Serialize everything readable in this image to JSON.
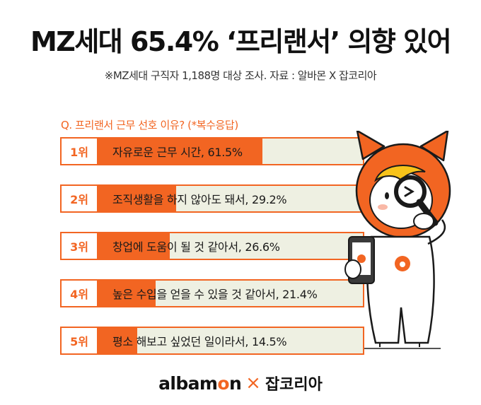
{
  "header": {
    "title": "MZ세대 65.4% ‘프리랜서’ 의향 있어",
    "subtitle": "※MZ세대 구직자 1,188명 대상 조사. 자료 : 알바몬 X 잡코리아"
  },
  "question": "Q. 프리랜서 근무 선호 이유? (*복수응답)",
  "chart_data": {
    "type": "bar",
    "orientation": "horizontal",
    "title": "Q. 프리랜서 근무 선호 이유? (*복수응답)",
    "categories": [
      "자유로운 근무 시간",
      "조직생활을 하지 않아도 돼서",
      "창업에 도움이 될 것 같아서",
      "높은 수입을 얻을 수 있을 것 같아서",
      "평소 해보고 싶었던 일이라서"
    ],
    "values": [
      61.5,
      29.2,
      26.6,
      21.4,
      14.5
    ],
    "unit": "%",
    "xlim": [
      0,
      100
    ]
  },
  "rows": [
    {
      "rank": "1위",
      "text": "자유로운 근무 시간, 61.5%"
    },
    {
      "rank": "2위",
      "text": "조직생활을 하지 않아도 돼서, 29.2%"
    },
    {
      "rank": "3위",
      "text": "창업에 도움이 될 것 같아서, 26.6%"
    },
    {
      "rank": "4위",
      "text": "높은 수입을 얻을 수 있을 것 같아서, 21.4%"
    },
    {
      "rank": "5위",
      "text": "평소 해보고 싶었던 일이라서, 14.5%"
    }
  ],
  "footer": {
    "brand1_a": "albam",
    "brand1_b": "o",
    "brand1_c": "n",
    "separator": "×",
    "brand2": "잡코리아"
  },
  "colors": {
    "accent": "#f26522",
    "bar_background": "#eef0e2",
    "text": "#1a1a1a"
  },
  "icons": {
    "mascot": "albamon-mascot-with-magnifier-and-phone"
  }
}
